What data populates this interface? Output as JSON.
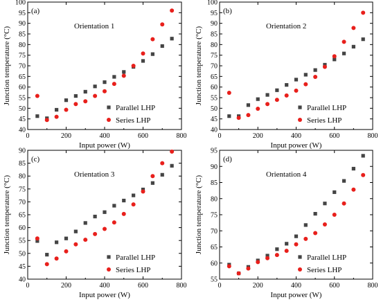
{
  "figure": {
    "colors": {
      "parallel": "#444444",
      "series": "#e8201c",
      "axis": "#000000"
    }
  },
  "chart_data": [
    {
      "type": "scatter",
      "panel_label": "(a)",
      "title": "Orientation 1",
      "xlabel": "Input power (W)",
      "ylabel": "Junction temperature (°C)",
      "xlim": [
        0,
        800
      ],
      "ylim": [
        40,
        100
      ],
      "xticks": [
        0,
        200,
        400,
        600,
        800
      ],
      "yticks": [
        40,
        45,
        50,
        55,
        60,
        65,
        70,
        75,
        80,
        85,
        90,
        95,
        100
      ],
      "legend_position": "bottom-right",
      "x": [
        50,
        100,
        150,
        200,
        250,
        300,
        350,
        400,
        450,
        500,
        550,
        600,
        650,
        700,
        750
      ],
      "series": [
        {
          "name": "Parallel LHP",
          "marker": "square",
          "values": [
            46.3,
            45.3,
            49.3,
            53.8,
            55.8,
            57.8,
            60.3,
            62.3,
            64.8,
            67.1,
            69.5,
            72.3,
            75.5,
            79.3,
            82.8
          ]
        },
        {
          "name": "Series LHP",
          "marker": "circle",
          "values": [
            55.8,
            44.5,
            46.0,
            49.3,
            52.0,
            53.3,
            55.8,
            58.0,
            61.5,
            65.3,
            70.0,
            75.8,
            82.5,
            89.5,
            96.0
          ]
        }
      ]
    },
    {
      "type": "scatter",
      "panel_label": "(b)",
      "title": "Orientation 2",
      "xlabel": "Input power (W)",
      "ylabel": "Junction temperature (°C)",
      "xlim": [
        0,
        800
      ],
      "ylim": [
        40,
        100
      ],
      "xticks": [
        0,
        200,
        400,
        600,
        800
      ],
      "yticks": [
        40,
        45,
        50,
        55,
        60,
        65,
        70,
        75,
        80,
        85,
        90,
        95,
        100
      ],
      "legend_position": "bottom-right",
      "x": [
        50,
        100,
        150,
        200,
        250,
        300,
        350,
        400,
        450,
        500,
        550,
        600,
        650,
        700,
        750
      ],
      "series": [
        {
          "name": "Parallel LHP",
          "marker": "square",
          "values": [
            46.3,
            46.3,
            51.5,
            54.3,
            56.3,
            58.5,
            61.0,
            63.5,
            65.8,
            68.0,
            70.5,
            73.0,
            75.8,
            79.0,
            82.5
          ]
        },
        {
          "name": "Series LHP",
          "marker": "circle",
          "values": [
            57.3,
            45.5,
            46.8,
            49.8,
            52.0,
            54.0,
            56.0,
            58.3,
            61.3,
            64.8,
            69.5,
            74.5,
            81.3,
            87.8,
            95.0
          ]
        }
      ]
    },
    {
      "type": "scatter",
      "panel_label": "(c)",
      "title": "Orientation 3",
      "xlabel": "Input power (W)",
      "ylabel": "Junction temperature (°C)",
      "xlim": [
        0,
        800
      ],
      "ylim": [
        40,
        90
      ],
      "xticks": [
        0,
        200,
        400,
        600,
        800
      ],
      "yticks": [
        40,
        45,
        50,
        55,
        60,
        65,
        70,
        75,
        80,
        85,
        90
      ],
      "legend_position": "bottom-right",
      "x": [
        50,
        100,
        150,
        200,
        250,
        300,
        350,
        400,
        450,
        500,
        550,
        600,
        650,
        700,
        750
      ],
      "series": [
        {
          "name": "Parallel LHP",
          "marker": "square",
          "values": [
            54.8,
            49.5,
            54.3,
            55.8,
            58.5,
            61.8,
            64.3,
            66.0,
            68.5,
            70.5,
            72.5,
            74.8,
            77.3,
            80.5,
            84.0
          ]
        },
        {
          "name": "Series LHP",
          "marker": "circle",
          "values": [
            55.8,
            45.8,
            48.0,
            50.8,
            53.5,
            55.3,
            57.5,
            59.5,
            62.0,
            65.3,
            69.0,
            74.0,
            80.0,
            85.0,
            89.5
          ]
        }
      ]
    },
    {
      "type": "scatter",
      "panel_label": "(d)",
      "title": "Orientation 4",
      "xlabel": "Input power (W)",
      "ylabel": "Junction temperature (°C)",
      "xlim": [
        0,
        800
      ],
      "ylim": [
        55,
        95
      ],
      "xticks": [
        0,
        200,
        400,
        600,
        800
      ],
      "yticks": [
        55,
        60,
        65,
        70,
        75,
        80,
        85,
        90,
        95
      ],
      "legend_position": "bottom-right",
      "x": [
        50,
        100,
        150,
        200,
        250,
        300,
        350,
        400,
        450,
        500,
        550,
        600,
        650,
        700,
        750
      ],
      "series": [
        {
          "name": "Parallel LHP",
          "marker": "square",
          "values": [
            59.5,
            56.8,
            58.8,
            60.8,
            62.3,
            64.3,
            66.0,
            68.3,
            71.8,
            75.3,
            78.5,
            82.0,
            85.5,
            89.3,
            93.3
          ]
        },
        {
          "name": "Series LHP",
          "marker": "circle",
          "values": [
            59.0,
            56.8,
            58.3,
            60.3,
            61.5,
            62.5,
            63.8,
            65.8,
            67.5,
            69.3,
            72.0,
            75.0,
            78.5,
            82.8,
            87.3
          ]
        }
      ]
    }
  ]
}
